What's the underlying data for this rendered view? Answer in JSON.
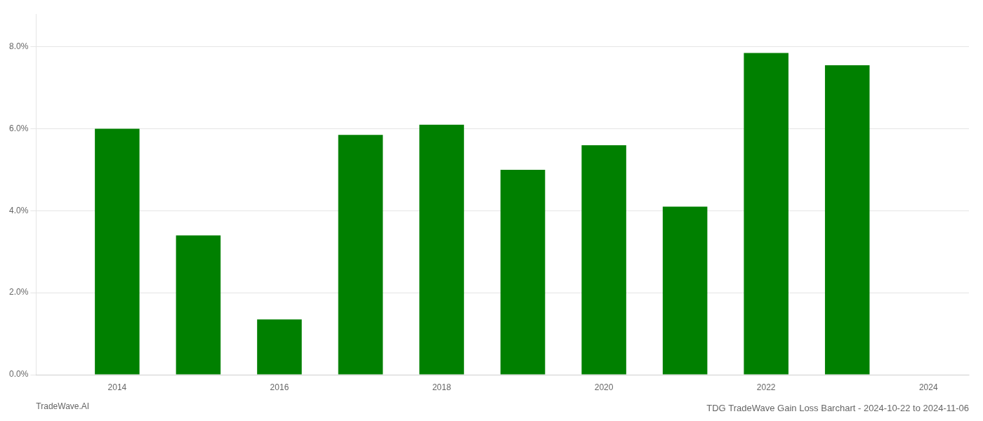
{
  "chart_data": {
    "type": "bar",
    "title": "TDG TradeWave Gain Loss Barchart - 2024-10-22 to 2024-11-06",
    "annotations": [
      "TradeWave.AI"
    ],
    "x": [
      2014,
      2015,
      2016,
      2017,
      2018,
      2019,
      2020,
      2021,
      2022,
      2023
    ],
    "values": [
      0.06,
      0.034,
      0.0135,
      0.0585,
      0.061,
      0.05,
      0.056,
      0.041,
      0.0785,
      0.0755
    ],
    "color": "#008000",
    "xlim": [
      2013.0,
      2024.5
    ],
    "xticks": [
      2014,
      2016,
      2018,
      2020,
      2022,
      2024
    ],
    "ylim": [
      0,
      0.088
    ],
    "yticks": [
      {
        "value": 0.0,
        "label": "0.0%"
      },
      {
        "value": 0.02,
        "label": "2.0%"
      },
      {
        "value": 0.04,
        "label": "4.0%"
      },
      {
        "value": 0.06,
        "label": "6.0%"
      },
      {
        "value": 0.08,
        "label": "8.0%"
      }
    ],
    "grid": true
  }
}
